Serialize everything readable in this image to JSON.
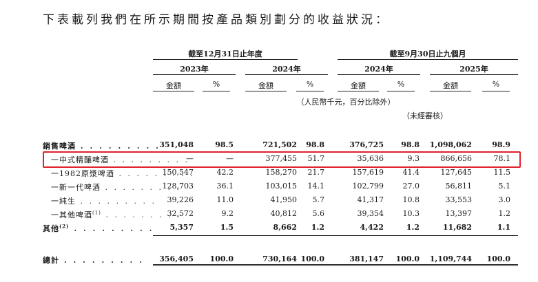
{
  "intro": "下表載列我們在所示期間按產品類別劃分的收益狀況：",
  "periods": {
    "year_end_header": "截至12月31日止年度",
    "nine_month_header": "截至9月30日止九個月",
    "years": [
      "2023年",
      "2024年",
      "2024年",
      "2025年"
    ]
  },
  "subheaders": [
    "金額",
    "%",
    "金額",
    "%",
    "金額",
    "%",
    "金額",
    "%"
  ],
  "units_note": "（人民幣千元，百分比除外）",
  "unaudited_note": "（未經審核）",
  "leader": ". . . . . . . . .",
  "rows": [
    {
      "label": "銷售啤酒",
      "sup": "",
      "values": [
        "351,048",
        "98.5",
        "721,502",
        "98.8",
        "376,725",
        "98.8",
        "1,098,062",
        "98.9"
      ]
    },
    {
      "label": "一中式精釀啤酒",
      "sup": "",
      "values": [
        "—",
        "—",
        "377,455",
        "51.7",
        "35,636",
        "9.3",
        "866,656",
        "78.1"
      ]
    },
    {
      "label": "一1982原漿啤酒",
      "sup": "",
      "values": [
        "150,547",
        "42.2",
        "158,270",
        "21.7",
        "157,619",
        "41.4",
        "127,645",
        "11.5"
      ]
    },
    {
      "label": "一新一代啤酒",
      "sup": "",
      "values": [
        "128,703",
        "36.1",
        "103,015",
        "14.1",
        "102,799",
        "27.0",
        "56,811",
        "5.1"
      ]
    },
    {
      "label": "一純生",
      "sup": "",
      "values": [
        "39,226",
        "11.0",
        "41,950",
        "5.7",
        "41,317",
        "10.8",
        "33,553",
        "3.0"
      ]
    },
    {
      "label": "一其他啤酒",
      "sup": "(1)",
      "values": [
        "32,572",
        "9.2",
        "40,812",
        "5.6",
        "39,354",
        "10.3",
        "13,397",
        "1.2"
      ]
    },
    {
      "label": "其他",
      "sup": "(2)",
      "values": [
        "5,357",
        "1.5",
        "8,662",
        "1.2",
        "4,422",
        "1.2",
        "11,682",
        "1.1"
      ]
    },
    {
      "label": "總計",
      "sup": "",
      "values": [
        "356,405",
        "100.0",
        "730,164",
        "100.0",
        "381,147",
        "100.0",
        "1,109,744",
        "100.0"
      ]
    }
  ],
  "highlight_color": "#e0202a"
}
